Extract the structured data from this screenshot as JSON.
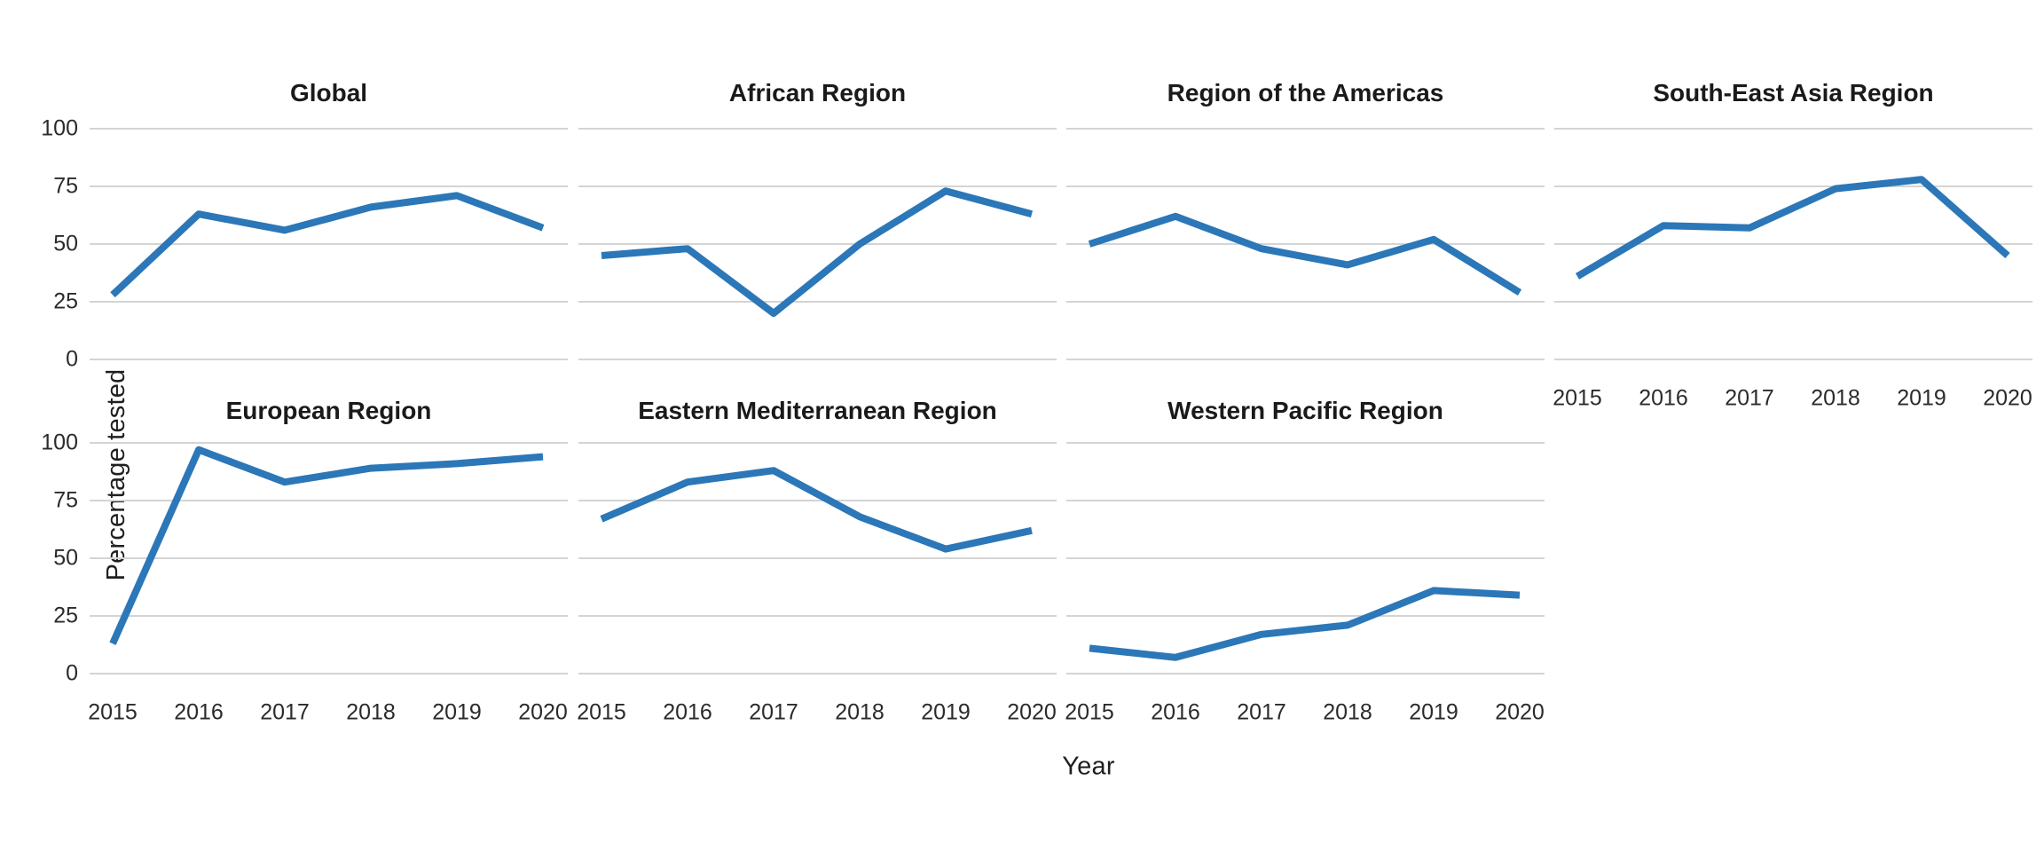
{
  "figure": {
    "x_axis_title": "Year",
    "y_axis_title": "Percentage tested"
  },
  "styles": {
    "line_color": "#2b77b8",
    "grid_color": "#d4d4d4",
    "title_color": "#1a1a1a",
    "tick_color": "#2b2b2b",
    "background": "#ffffff"
  },
  "chart_data": {
    "type": "line",
    "layout": "faceted small multiples: 2 rows x 4 columns, 7 panels (last cell of row 2 empty), shared axes",
    "title": "",
    "xlabel": "Year",
    "ylabel": "Percentage tested",
    "x": [
      2015,
      2016,
      2017,
      2018,
      2019,
      2020
    ],
    "ylim": [
      0,
      100
    ],
    "y_ticks": [
      100,
      75,
      50,
      25,
      0
    ],
    "grid": "horizontal gridlines only, light gray",
    "legend": "none",
    "series_color": "#2b77b8",
    "facets": [
      {
        "title": "Global",
        "row": 0,
        "col": 0,
        "values": [
          28,
          63,
          56,
          66,
          71,
          57
        ],
        "x_labels_below": false
      },
      {
        "title": "African Region",
        "row": 0,
        "col": 1,
        "values": [
          45,
          48,
          20,
          50,
          73,
          63
        ],
        "x_labels_below": false
      },
      {
        "title": "Region of the Americas",
        "row": 0,
        "col": 2,
        "values": [
          50,
          62,
          48,
          41,
          52,
          29
        ],
        "x_labels_below": false
      },
      {
        "title": "South-East Asia Region",
        "row": 0,
        "col": 3,
        "values": [
          36,
          58,
          57,
          74,
          78,
          45
        ],
        "x_labels_below": true
      },
      {
        "title": "European Region",
        "row": 1,
        "col": 0,
        "values": [
          13,
          97,
          83,
          89,
          91,
          94
        ],
        "x_labels_below": true
      },
      {
        "title": "Eastern Mediterranean Region",
        "row": 1,
        "col": 1,
        "values": [
          67,
          83,
          88,
          68,
          54,
          62
        ],
        "x_labels_below": true
      },
      {
        "title": "Western Pacific Region",
        "row": 1,
        "col": 2,
        "values": [
          11,
          7,
          17,
          21,
          36,
          34
        ],
        "x_labels_below": true
      }
    ]
  }
}
